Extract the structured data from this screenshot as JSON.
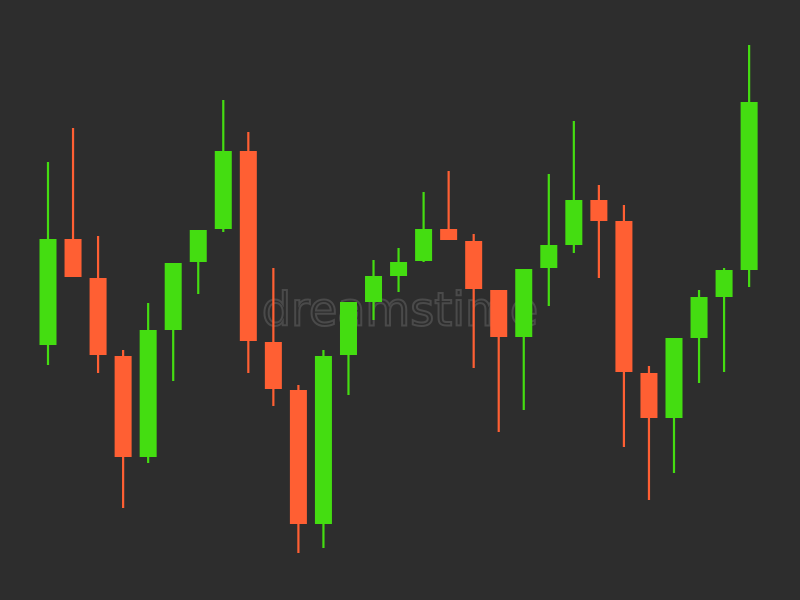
{
  "chart_data": {
    "type": "candlestick",
    "open": [
      255,
      361,
      322,
      244,
      143,
      270,
      338,
      371,
      449,
      258,
      210,
      76,
      245,
      298,
      324,
      339,
      371,
      359,
      310,
      263,
      332,
      355,
      400,
      379,
      227,
      182,
      262,
      303,
      330
    ],
    "high": [
      438,
      472,
      364,
      250,
      297,
      337,
      370,
      500,
      468,
      332,
      215,
      250,
      298,
      340,
      352,
      408,
      429,
      366,
      310,
      331,
      426,
      479,
      415,
      395,
      234,
      262,
      310,
      332,
      555
    ],
    "low": [
      235,
      323,
      227,
      92,
      137,
      219,
      306,
      368,
      227,
      194,
      47,
      52,
      205,
      280,
      308,
      338,
      360,
      232,
      168,
      190,
      294,
      347,
      322,
      153,
      100,
      127,
      217,
      228,
      313
    ],
    "close": [
      361,
      323,
      245,
      143,
      270,
      337,
      370,
      449,
      259,
      211,
      76,
      244,
      298,
      324,
      338,
      371,
      360,
      311,
      263,
      331,
      355,
      400,
      379,
      228,
      182,
      262,
      303,
      330,
      498
    ],
    "up_color": "#44dd11",
    "down_color": "#ff5f33",
    "ylim": [
      0,
      600
    ]
  },
  "watermark": "dreamstime"
}
